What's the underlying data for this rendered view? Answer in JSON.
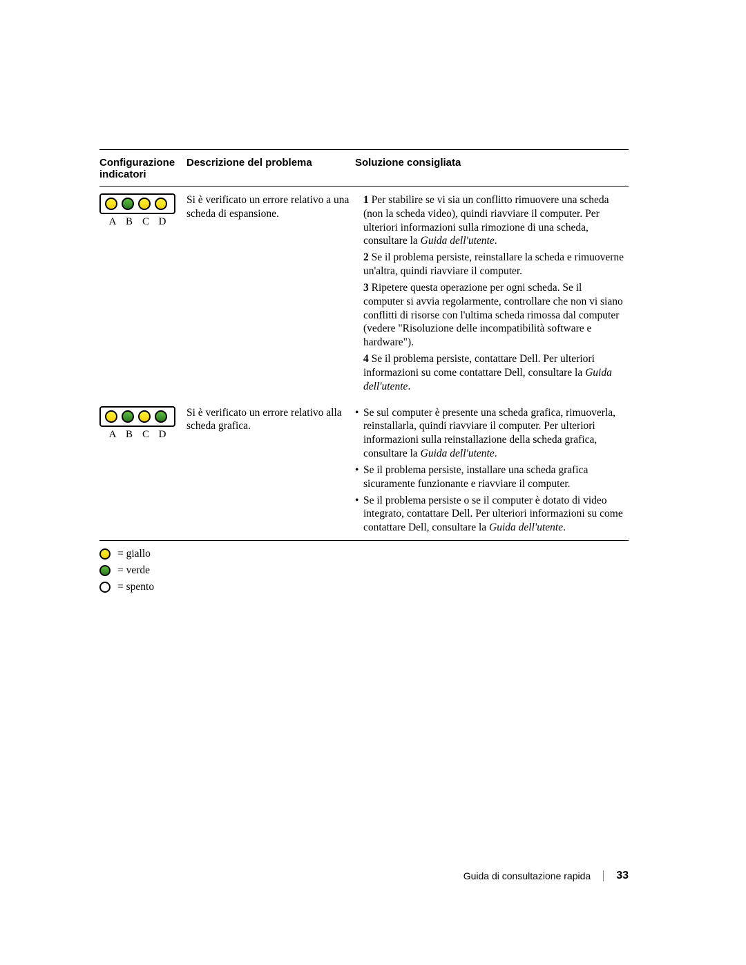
{
  "colors": {
    "giallo": "#f5d300",
    "verde": "#2a7a1e",
    "spento": "#ffffff",
    "border": "#000000",
    "rule": "#000000"
  },
  "headers": {
    "col1": "Configurazione indicatori",
    "col2": "Descrizione del problema",
    "col3": "Soluzione consigliata"
  },
  "rows": [
    {
      "pattern": [
        "y",
        "g",
        "y",
        "y"
      ],
      "letters": [
        "A",
        "B",
        "C",
        "D"
      ],
      "problem": "Si è verificato un errore relativo a una scheda di espansione.",
      "solution_type": "ol",
      "solution": [
        {
          "n": "1",
          "text": "Per stabilire se vi sia un conflitto rimuovere una scheda (non la scheda video), quindi riavviare il computer. Per ulteriori informazioni sulla rimozione di una scheda, consultare la ",
          "ital": "Guida dell'utente",
          "tail": "."
        },
        {
          "n": "2",
          "text": "Se il problema persiste, reinstallare la scheda e rimuoverne un'altra, quindi riavviare il computer.",
          "ital": "",
          "tail": ""
        },
        {
          "n": "3",
          "text": "Ripetere questa operazione per ogni scheda. Se il computer si avvia regolarmente, controllare che non vi siano conflitti di risorse con l'ultima scheda rimossa dal computer (vedere \"Risoluzione delle incompatibilità software e hardware\").",
          "ital": "",
          "tail": ""
        },
        {
          "n": "4",
          "text": "Se il problema persiste, contattare Dell. Per ulteriori informazioni su come contattare Dell, consultare la ",
          "ital": "Guida dell'utente",
          "tail": "."
        }
      ]
    },
    {
      "pattern": [
        "y",
        "g",
        "y",
        "g"
      ],
      "letters": [
        "A",
        "B",
        "C",
        "D"
      ],
      "problem": "Si è verificato un errore relativo alla scheda grafica.",
      "solution_type": "ul",
      "solution": [
        {
          "text": "Se sul computer è presente una scheda grafica, rimuoverla, reinstallarla, quindi riavviare il computer. Per ulteriori informazioni sulla reinstallazione della scheda grafica, consultare la ",
          "ital": "Guida dell'utente",
          "tail": "."
        },
        {
          "text": "Se il problema persiste, installare una scheda grafica sicuramente funzionante e riavviare il computer.",
          "ital": "",
          "tail": ""
        },
        {
          "text": "Se il problema persiste o se il computer è dotato di video integrato, contattare Dell. Per ulteriori informazioni su come contattare Dell, consultare la ",
          "ital": "Guida dell'utente",
          "tail": "."
        }
      ]
    }
  ],
  "legend": [
    {
      "color": "y",
      "label": "= giallo"
    },
    {
      "color": "g",
      "label": "= verde"
    },
    {
      "color": "off",
      "label": "= spento"
    }
  ],
  "footer": {
    "title": "Guida di consultazione rapida",
    "page": "33"
  }
}
